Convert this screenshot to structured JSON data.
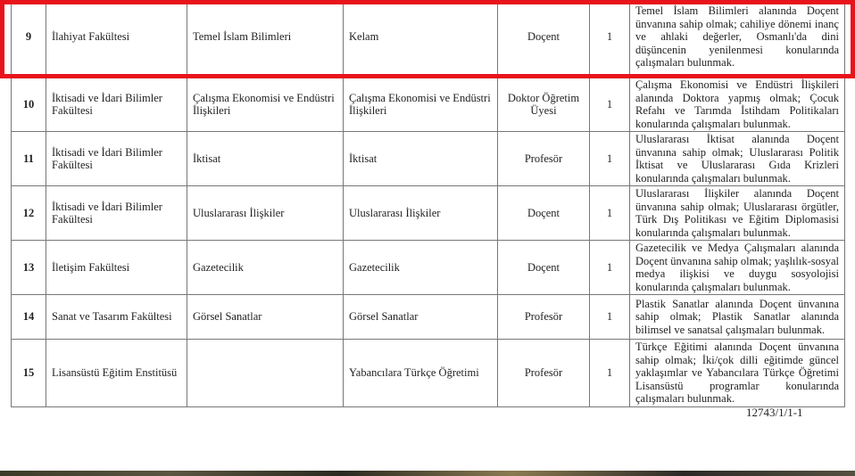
{
  "rows": [
    {
      "no": "9",
      "faculty": "İlahiyat Fakültesi",
      "department": "Temel İslam Bilimleri",
      "program": "Kelam",
      "title": "Doçent",
      "count": "1",
      "requirements": "Temel İslam Bilimleri alanında Doçent ünvanına sahip olmak; cahiliye dönemi inanç ve ahlaki değerler, Osmanlı'da dini düşüncenin yenilenmesi konularında çalışmaları bulunmak."
    },
    {
      "no": "10",
      "faculty": "İktisadi ve İdari Bilimler Fakültesi",
      "department": "Çalışma Ekonomisi ve Endüstri İlişkileri",
      "program": "Çalışma Ekonomisi ve Endüstri İlişkileri",
      "title": "Doktor Öğretim Üyesi",
      "count": "1",
      "requirements": "Çalışma Ekonomisi ve Endüstri İlişkileri alanında Doktora yapmış olmak; Çocuk Refahı ve Tarımda İstihdam Politikaları konularında çalışmaları bulunmak."
    },
    {
      "no": "11",
      "faculty": "İktisadi ve İdari Bilimler Fakültesi",
      "department": "İktisat",
      "program": "İktisat",
      "title": "Profesör",
      "count": "1",
      "requirements": "Uluslararası İktisat alanında Doçent ünvanına sahip olmak; Uluslararası Politik İktisat ve Uluslararası Gıda Krizleri konularında çalışmaları bulunmak."
    },
    {
      "no": "12",
      "faculty": "İktisadi ve İdari Bilimler Fakültesi",
      "department": "Uluslararası İlişkiler",
      "program": "Uluslararası İlişkiler",
      "title": "Doçent",
      "count": "1",
      "requirements": "Uluslararası İlişkiler alanında Doçent ünvanına sahip olmak; Uluslararası örgütler, Türk Dış Politikası ve Eğitim Diplomasisi konularında çalışmaları bulunmak."
    },
    {
      "no": "13",
      "faculty": "İletişim Fakültesi",
      "department": "Gazetecilik",
      "program": "Gazetecilik",
      "title": "Doçent",
      "count": "1",
      "requirements": "Gazetecilik ve Medya Çalışmaları alanında Doçent ünvanına sahip olmak; yaşlılık-sosyal medya ilişkisi ve duygu sosyolojisi konularında çalışmaları bulunmak."
    },
    {
      "no": "14",
      "faculty": "Sanat ve Tasarım Fakültesi",
      "department": "Görsel Sanatlar",
      "program": "Görsel Sanatlar",
      "title": "Profesör",
      "count": "1",
      "requirements": "Plastik Sanatlar alanında Doçent ünvanına sahip olmak; Plastik Sanatlar alanında bilimsel ve sanatsal çalışmaları bulunmak."
    },
    {
      "no": "15",
      "faculty": "Lisansüstü Eğitim Enstitüsü",
      "department": "",
      "program": "Yabancılara Türkçe Öğretimi",
      "title": "Profesör",
      "count": "1",
      "requirements": "Türkçe Eğitimi alanında Doçent ünvanına sahip olmak; İki/çok dilli eğitimde güncel yaklaşımlar ve Yabancılara Türkçe Öğretimi Lisansüstü programlar konularında çalışmaları bulunmak."
    }
  ],
  "footer": "12743/1/1-1",
  "highlight_color": "#e8141b"
}
